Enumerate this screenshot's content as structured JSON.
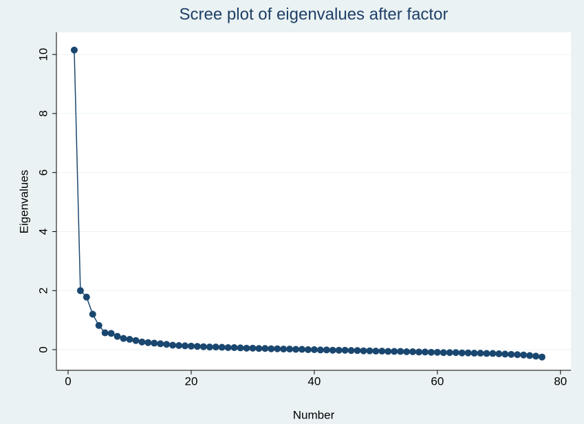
{
  "chart_data": {
    "type": "line",
    "title": "Scree plot of eigenvalues after factor",
    "x_label": "Number",
    "y_label": "Eigenvalues",
    "x": [
      1,
      2,
      3,
      4,
      5,
      6,
      7,
      8,
      9,
      10,
      11,
      12,
      13,
      14,
      15,
      16,
      17,
      18,
      19,
      20,
      21,
      22,
      23,
      24,
      25,
      26,
      27,
      28,
      29,
      30,
      31,
      32,
      33,
      34,
      35,
      36,
      37,
      38,
      39,
      40,
      41,
      42,
      43,
      44,
      45,
      46,
      47,
      48,
      49,
      50,
      51,
      52,
      53,
      54,
      55,
      56,
      57,
      58,
      59,
      60,
      61,
      62,
      63,
      64,
      65,
      66,
      67,
      68,
      69,
      70,
      71,
      72,
      73,
      74,
      75,
      76,
      77
    ],
    "values": [
      10.15,
      2.0,
      1.78,
      1.2,
      0.82,
      0.57,
      0.55,
      0.45,
      0.38,
      0.35,
      0.31,
      0.26,
      0.24,
      0.22,
      0.2,
      0.18,
      0.15,
      0.14,
      0.13,
      0.12,
      0.11,
      0.1,
      0.09,
      0.09,
      0.08,
      0.07,
      0.07,
      0.06,
      0.05,
      0.05,
      0.04,
      0.04,
      0.03,
      0.03,
      0.02,
      0.02,
      0.01,
      0.01,
      0.0,
      0.0,
      -0.01,
      -0.01,
      -0.02,
      -0.02,
      -0.02,
      -0.03,
      -0.03,
      -0.04,
      -0.04,
      -0.05,
      -0.05,
      -0.06,
      -0.06,
      -0.06,
      -0.07,
      -0.07,
      -0.08,
      -0.08,
      -0.09,
      -0.09,
      -0.1,
      -0.1,
      -0.1,
      -0.11,
      -0.11,
      -0.12,
      -0.12,
      -0.13,
      -0.13,
      -0.14,
      -0.15,
      -0.16,
      -0.17,
      -0.18,
      -0.2,
      -0.22,
      -0.25
    ],
    "color": "#1a476f",
    "xlim": [
      -1.9,
      81.7
    ],
    "xticks": [
      0,
      20,
      40,
      60,
      80
    ],
    "ylim": [
      -0.7,
      10.75
    ],
    "yticks": [
      0,
      2,
      4,
      6,
      8,
      10
    ],
    "grid": true
  }
}
